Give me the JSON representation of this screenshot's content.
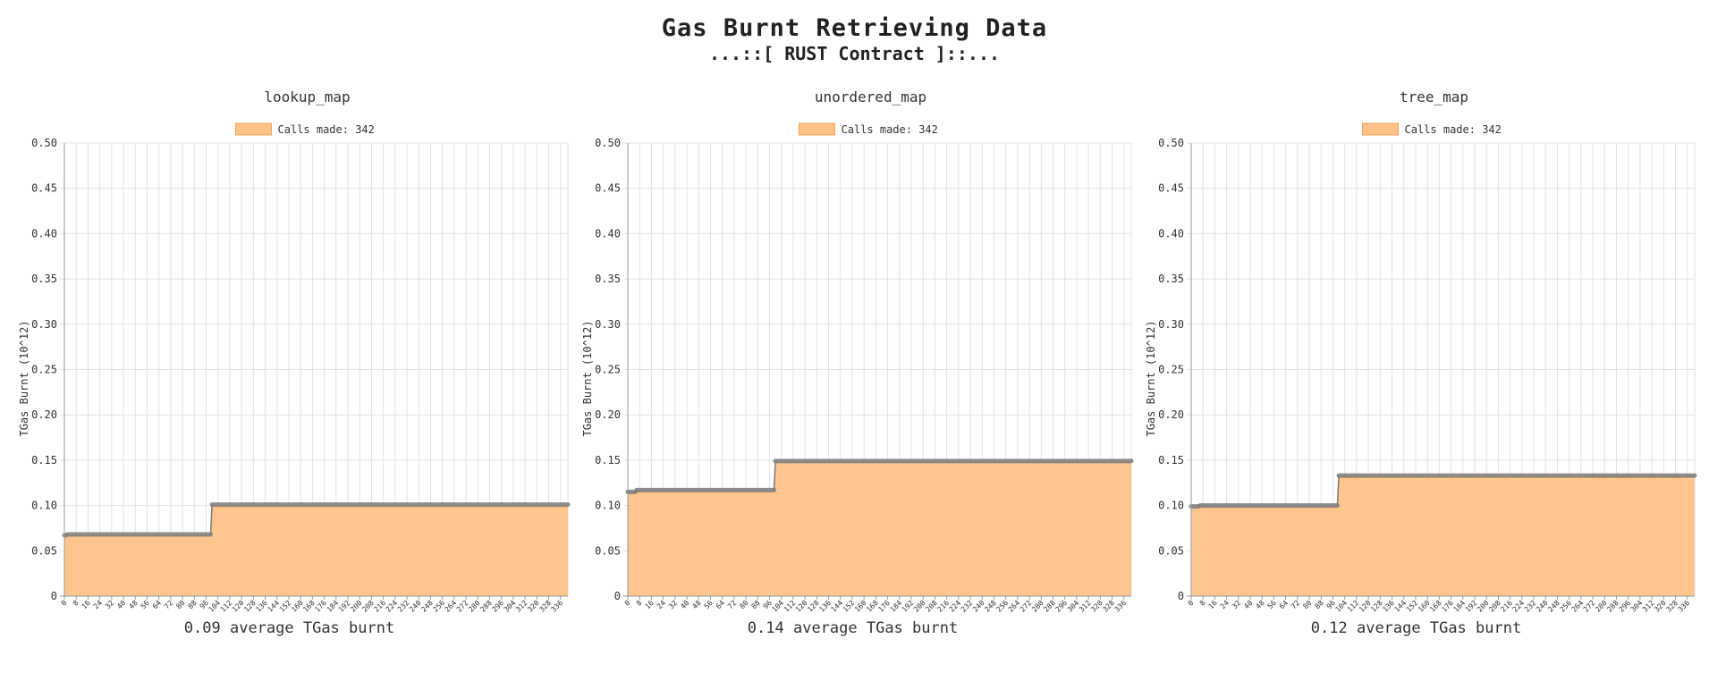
{
  "header": {
    "title": "Gas Burnt Retrieving Data",
    "subtitle": "...::[ RUST Contract ]::..."
  },
  "colors": {
    "fill": "#ffc289",
    "fill_stroke": "#f2a65a",
    "line": "#7a7a7a",
    "grid": "#e2e2e2"
  },
  "chart_data": [
    {
      "type": "area",
      "title": "lookup_map",
      "legend": "Calls made: 342",
      "ylabel": "TGas Burnt (10^12)",
      "xlabel": "0.09 average TGas burnt",
      "ylim": [
        0,
        0.5
      ],
      "xlim": [
        0,
        341
      ],
      "yticks": [
        "0",
        "0.05",
        "0.10",
        "0.15",
        "0.20",
        "0.25",
        "0.30",
        "0.35",
        "0.40",
        "0.45",
        "0.50"
      ],
      "xticks": [
        "0",
        "8",
        "16",
        "24",
        "32",
        "40",
        "48",
        "56",
        "64",
        "72",
        "80",
        "88",
        "96",
        "104",
        "112",
        "120",
        "128",
        "136",
        "144",
        "152",
        "160",
        "168",
        "176",
        "184",
        "192",
        "200",
        "208",
        "216",
        "224",
        "232",
        "240",
        "248",
        "256",
        "264",
        "272",
        "280",
        "288",
        "296",
        "304",
        "312",
        "320",
        "328",
        "336"
      ],
      "segments": [
        {
          "x_start": 0,
          "x_end": 1,
          "y": 0.067
        },
        {
          "x_start": 2,
          "x_end": 99,
          "y": 0.068
        },
        {
          "x_start": 100,
          "x_end": 341,
          "y": 0.101
        }
      ]
    },
    {
      "type": "area",
      "title": "unordered_map",
      "legend": "Calls made: 342",
      "ylabel": "TGas Burnt (10^12)",
      "xlabel": "0.14 average TGas burnt",
      "ylim": [
        0,
        0.5
      ],
      "xlim": [
        0,
        341
      ],
      "yticks": [
        "0",
        "0.05",
        "0.10",
        "0.15",
        "0.20",
        "0.25",
        "0.30",
        "0.35",
        "0.40",
        "0.45",
        "0.50"
      ],
      "xticks": [
        "0",
        "8",
        "16",
        "24",
        "32",
        "40",
        "48",
        "56",
        "64",
        "72",
        "80",
        "88",
        "96",
        "104",
        "112",
        "120",
        "128",
        "136",
        "144",
        "152",
        "160",
        "168",
        "176",
        "184",
        "192",
        "200",
        "208",
        "216",
        "224",
        "232",
        "240",
        "248",
        "256",
        "264",
        "272",
        "280",
        "288",
        "296",
        "304",
        "312",
        "320",
        "328",
        "336"
      ],
      "segments": [
        {
          "x_start": 0,
          "x_end": 5,
          "y": 0.115
        },
        {
          "x_start": 6,
          "x_end": 99,
          "y": 0.117
        },
        {
          "x_start": 100,
          "x_end": 341,
          "y": 0.149
        }
      ]
    },
    {
      "type": "area",
      "title": "tree_map",
      "legend": "Calls made: 342",
      "ylabel": "TGas Burnt (10^12)",
      "xlabel": "0.12 average TGas burnt",
      "ylim": [
        0,
        0.5
      ],
      "xlim": [
        0,
        341
      ],
      "yticks": [
        "0",
        "0.05",
        "0.10",
        "0.15",
        "0.20",
        "0.25",
        "0.30",
        "0.35",
        "0.40",
        "0.45",
        "0.50"
      ],
      "xticks": [
        "0",
        "8",
        "16",
        "24",
        "32",
        "40",
        "48",
        "56",
        "64",
        "72",
        "80",
        "88",
        "96",
        "104",
        "112",
        "120",
        "128",
        "136",
        "144",
        "152",
        "160",
        "168",
        "176",
        "184",
        "192",
        "200",
        "208",
        "216",
        "224",
        "232",
        "240",
        "248",
        "256",
        "264",
        "272",
        "280",
        "288",
        "296",
        "304",
        "312",
        "320",
        "328",
        "336"
      ],
      "segments": [
        {
          "x_start": 0,
          "x_end": 5,
          "y": 0.099
        },
        {
          "x_start": 6,
          "x_end": 99,
          "y": 0.1
        },
        {
          "x_start": 100,
          "x_end": 341,
          "y": 0.133
        }
      ]
    }
  ]
}
